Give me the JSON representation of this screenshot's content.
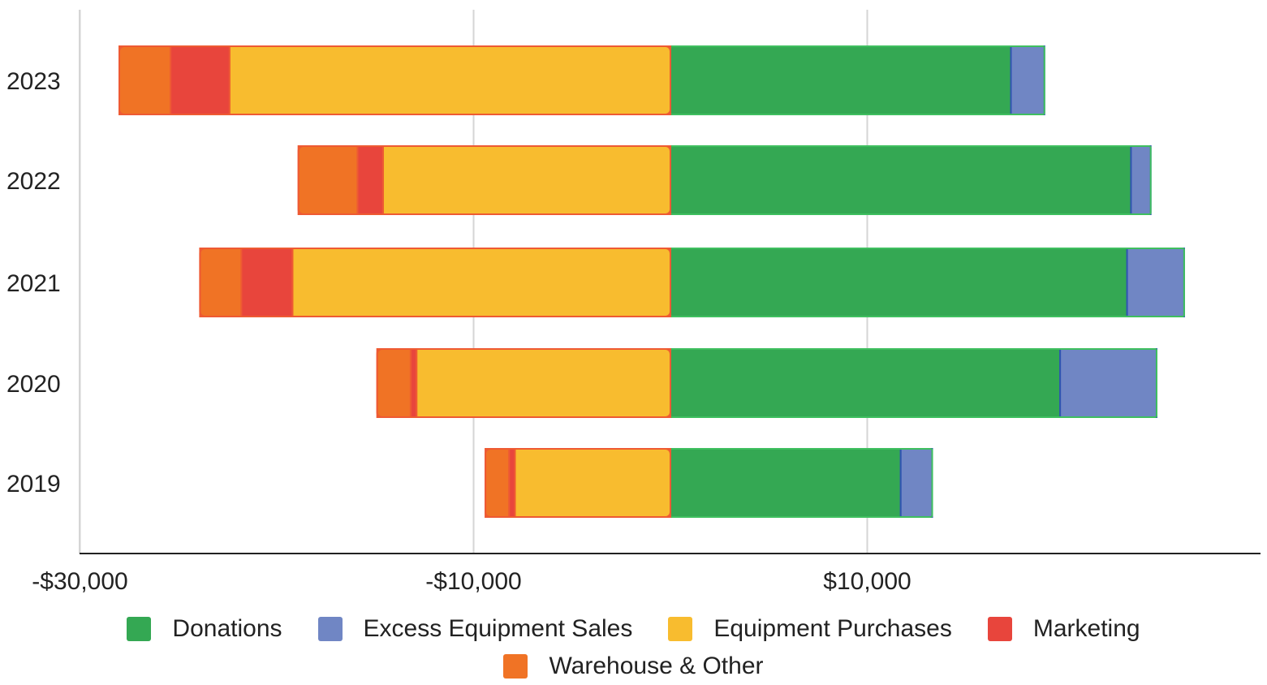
{
  "chart_data": {
    "type": "bar",
    "orientation": "horizontal",
    "stacked": true,
    "categories": [
      "2023",
      "2022",
      "2021",
      "2020",
      "2019"
    ],
    "series": [
      {
        "name": "Donations",
        "color": "#34a853",
        "values": [
          17300,
          23400,
          23200,
          19800,
          11700
        ]
      },
      {
        "name": "Excess Equipment Sales",
        "color": "#7086c4",
        "values": [
          1700,
          1000,
          2900,
          4900,
          1600
        ]
      },
      {
        "name": "Equipment Purchases",
        "color": "#f8bc2f",
        "values": [
          -22400,
          -14600,
          -19200,
          -12900,
          -7900
        ]
      },
      {
        "name": "Marketing",
        "color": "#e8453c",
        "values": [
          -3000,
          -1300,
          -2600,
          -300,
          -300
        ]
      },
      {
        "name": "Warehouse & Other",
        "color": "#f07325",
        "values": [
          -2600,
          -3000,
          -2100,
          -1700,
          -1200
        ]
      }
    ],
    "xaxis": {
      "range": [
        -30000,
        30000
      ],
      "ticks": [
        -30000,
        -10000,
        10000
      ],
      "tick_labels": [
        "-$30,000",
        "-$10,000",
        "$10,000"
      ]
    },
    "xlabel": "",
    "ylabel": "",
    "grid": true,
    "legend": "bottom"
  },
  "legend": {
    "row1": [
      "Donations",
      "Excess Equipment Sales",
      "Equipment Purchases",
      "Marketing"
    ],
    "row2": [
      "Warehouse & Other"
    ]
  }
}
